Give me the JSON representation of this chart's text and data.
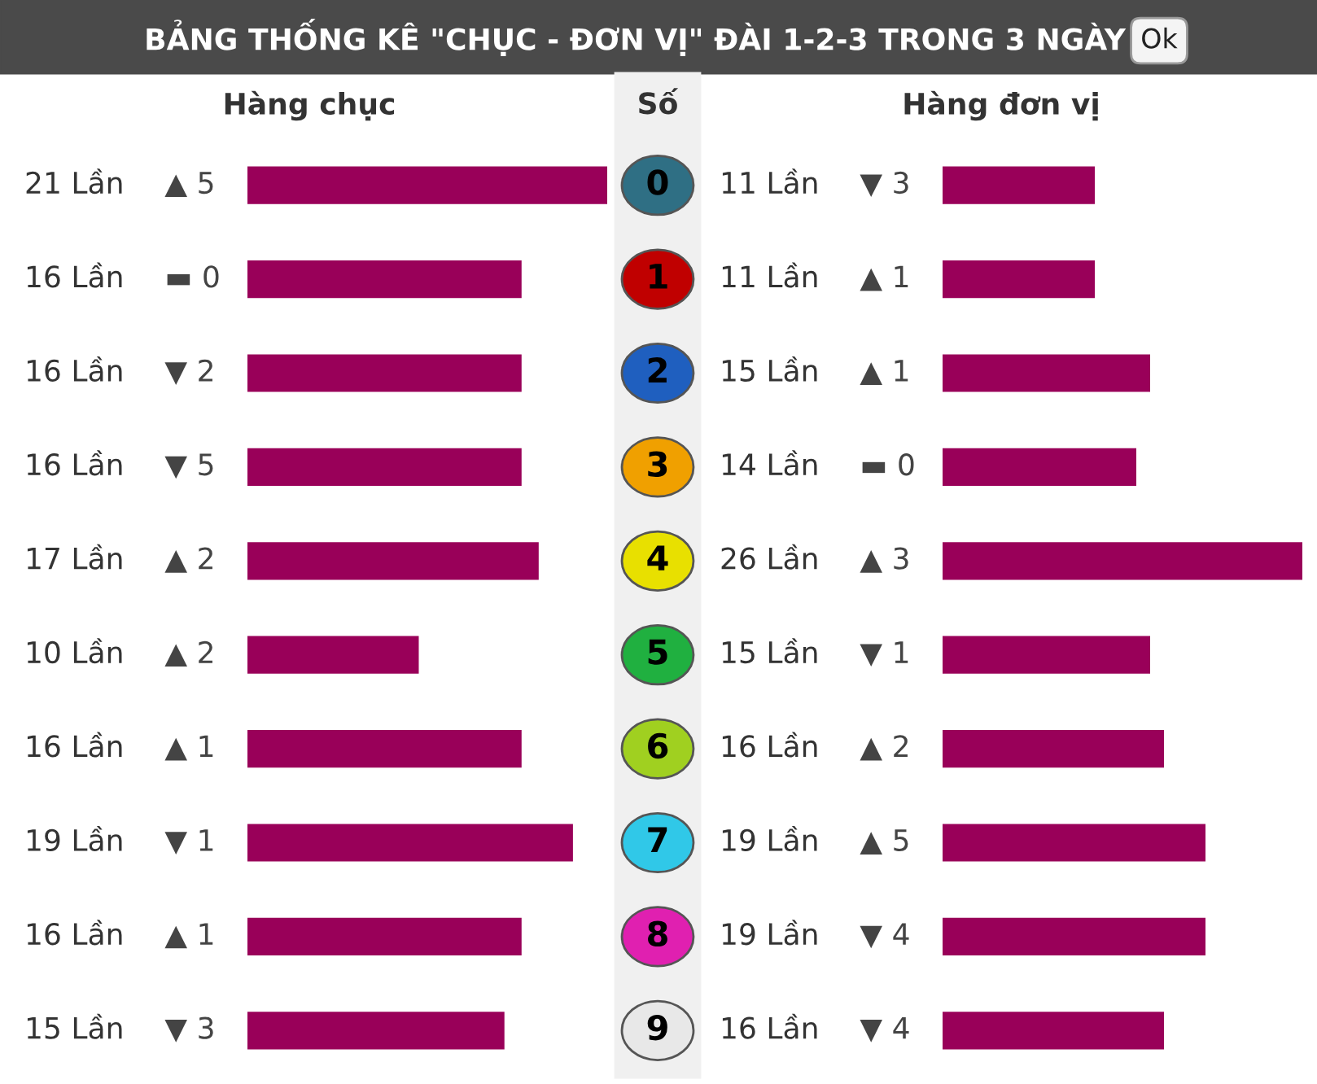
{
  "chart_data": [
    {
      "type": "bar",
      "orientation": "horizontal",
      "title": "BẢNG THỐNG KÊ \"CHỤC - ĐƠN VỊ\" ĐÀI 1-2-3 TRONG 3 NGÀY",
      "xlabel": "Hàng chục",
      "ylabel": "Số",
      "categories": [
        "0",
        "1",
        "2",
        "3",
        "4",
        "5",
        "6",
        "7",
        "8",
        "9"
      ],
      "values": [
        21,
        16,
        16,
        16,
        17,
        10,
        16,
        19,
        16,
        15
      ],
      "value_labels": [
        "21 Lần",
        "16 Lần",
        "16 Lần",
        "16 Lần",
        "17 Lần",
        "10 Lần",
        "16 Lần",
        "19 Lần",
        "16 Lần",
        "15 Lần"
      ],
      "color": "#990059",
      "xlim": [
        0,
        21
      ],
      "tick_labels": "y",
      "annotations": [
        "▲ 5",
        "▬ 0",
        "▼ 2",
        "▼ 5",
        "▲ 2",
        "▲ 2",
        "▲ 1",
        "▼ 1",
        "▲ 1",
        "▼ 3",
        "Ok"
      ]
    },
    {
      "type": "bar",
      "orientation": "horizontal",
      "xlabel": "Hàng đơn vị",
      "categories": [
        "0",
        "1",
        "2",
        "3",
        "4",
        "5",
        "6",
        "7",
        "8",
        "9"
      ],
      "values": [
        11,
        11,
        15,
        14,
        26,
        15,
        16,
        19,
        19,
        16
      ],
      "value_labels": [
        "11 Lần",
        "11 Lần",
        "15 Lần",
        "14 Lần",
        "26 Lần",
        "15 Lần",
        "16 Lần",
        "19 Lần",
        "19 Lần",
        "16 Lần"
      ],
      "color": "#990059",
      "xlim": [
        0,
        26
      ],
      "tick_labels": false,
      "annotations": [
        "▼ 3",
        "▲ 1",
        "▲ 1",
        "▬ 0",
        "▲ 3",
        "▼ 1",
        "▲ 2",
        "▲ 5",
        "▼ 4",
        "▼ 4"
      ]
    }
  ]
}
